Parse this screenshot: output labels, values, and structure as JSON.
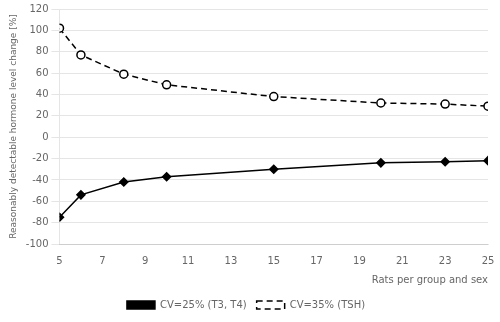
{
  "chart_data": {
    "type": "line",
    "x": [
      5,
      6,
      8,
      10,
      15,
      20,
      23,
      25
    ],
    "series": [
      {
        "name": "CV=25% (T3, T4)",
        "color": "#000000",
        "values": [
          -75,
          -54,
          -42,
          -37,
          -30,
          -24,
          -23,
          -22
        ],
        "marker": "diamond",
        "line_style": "solid"
      },
      {
        "name": "CV=35% (TSH)",
        "color": "#000000",
        "values": [
          102,
          77,
          59,
          49,
          38,
          32,
          31,
          29
        ],
        "marker": "circle",
        "line_style": "dashed"
      }
    ],
    "xlim": [
      5,
      25
    ],
    "ylim": [
      -100,
      120
    ],
    "xticks": [
      5,
      7,
      9,
      11,
      13,
      15,
      17,
      19,
      21,
      23,
      25
    ],
    "yticks": [
      -100,
      -80,
      -60,
      -40,
      -20,
      0,
      20,
      40,
      60,
      80,
      100,
      120
    ],
    "ylabel": "Reasonably detectable hormone level change [%]",
    "xlabel": "Rats per group and sex",
    "grid": "y",
    "legend": "bottom"
  }
}
